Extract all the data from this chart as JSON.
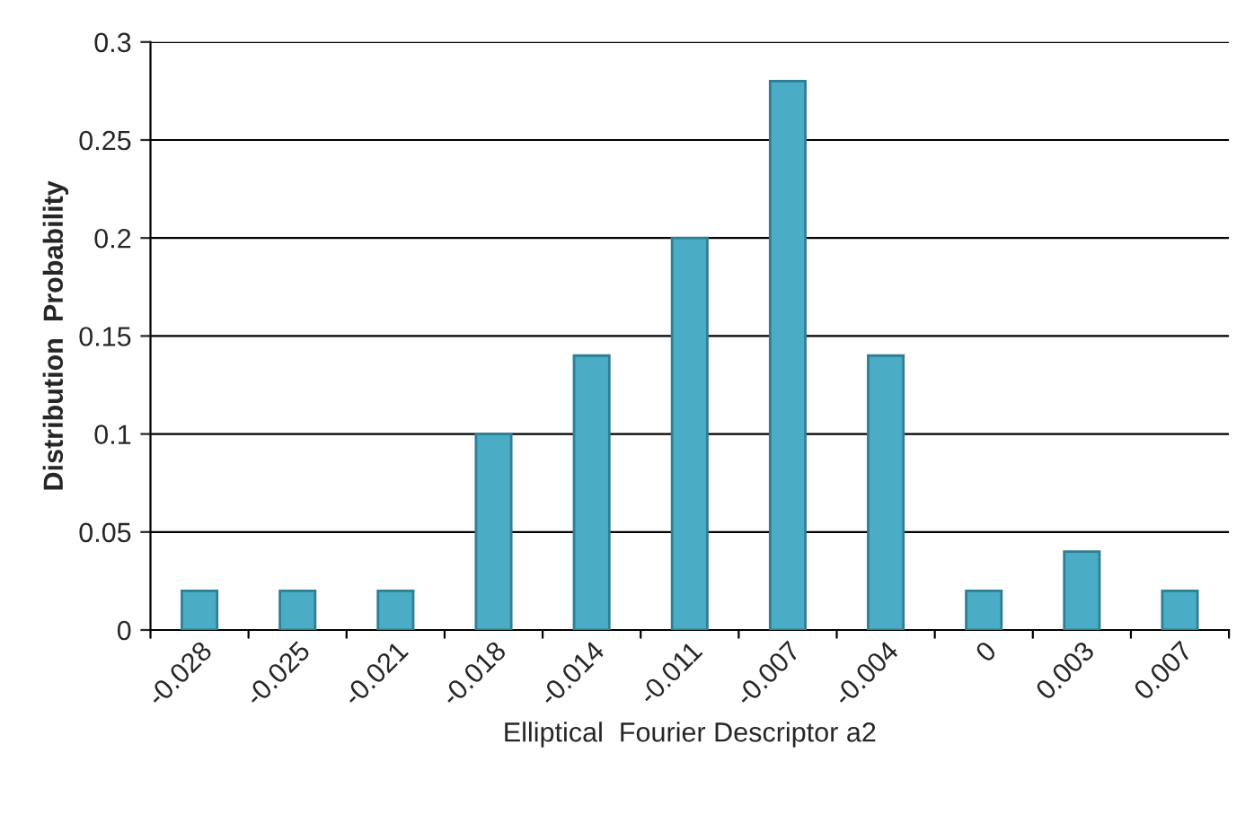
{
  "chart_data": {
    "type": "bar",
    "xlabel": "Elliptical  Fourier Descriptor a2",
    "ylabel": "Distribution  Probability",
    "categories": [
      "-0.028",
      "-0.025",
      "-0.021",
      "-0.018",
      "-0.014",
      "-0.011",
      "-0.007",
      "-0.004",
      "0",
      "0.003",
      "0.007"
    ],
    "values": [
      0.02,
      0.02,
      0.02,
      0.1,
      0.14,
      0.2,
      0.28,
      0.14,
      0.02,
      0.04,
      0.02
    ],
    "color": "#4bacc6",
    "ylim": [
      0,
      0.3
    ],
    "yticks": [
      0,
      0.05,
      0.1,
      0.15,
      0.2,
      0.25,
      0.3
    ],
    "grid": "y",
    "legend": false
  }
}
